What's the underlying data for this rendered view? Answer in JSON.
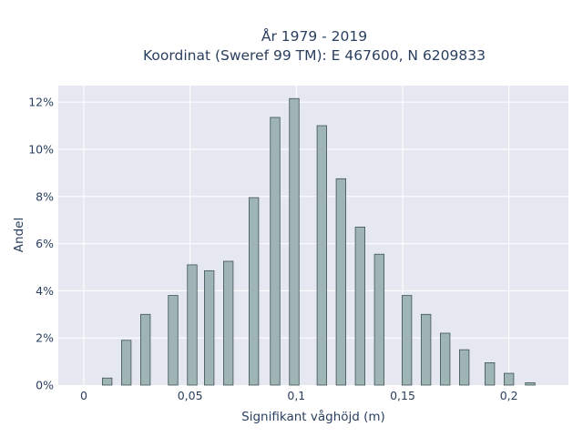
{
  "chart_data": {
    "type": "bar",
    "title_line1": "År 1979 - 2019",
    "title_line2": "Koordinat (Sweref 99 TM): E 467600, N 6209833",
    "xlabel": "Signifikant våghöjd (m)",
    "ylabel": "Andel",
    "xlim": [
      -0.012,
      0.228
    ],
    "ylim": [
      0,
      12.7
    ],
    "x_ticks": [
      {
        "value": 0,
        "label": "0"
      },
      {
        "value": 0.05,
        "label": "0,05"
      },
      {
        "value": 0.1,
        "label": "0,1"
      },
      {
        "value": 0.15,
        "label": "0,15"
      },
      {
        "value": 0.2,
        "label": "0,2"
      }
    ],
    "y_ticks": [
      {
        "value": 0,
        "label": "0%"
      },
      {
        "value": 2,
        "label": "2%"
      },
      {
        "value": 4,
        "label": "4%"
      },
      {
        "value": 6,
        "label": "6%"
      },
      {
        "value": 8,
        "label": "8%"
      },
      {
        "value": 10,
        "label": "10%"
      },
      {
        "value": 12,
        "label": "12%"
      }
    ],
    "bar_width": 0.0045,
    "x": [
      0.011,
      0.02,
      0.029,
      0.042,
      0.051,
      0.059,
      0.068,
      0.08,
      0.09,
      0.099,
      0.112,
      0.121,
      0.13,
      0.139,
      0.152,
      0.161,
      0.17,
      0.179,
      0.191,
      0.2,
      0.21
    ],
    "values": [
      0.3,
      1.9,
      3.0,
      3.8,
      5.1,
      4.85,
      5.25,
      7.95,
      11.35,
      12.15,
      11.0,
      8.75,
      6.7,
      5.55,
      3.8,
      3.0,
      2.2,
      1.5,
      0.95,
      0.5,
      0.1
    ],
    "colors": {
      "plot_bg": "#e5e8f1",
      "bar_fill": "#9fb5b5",
      "bar_stroke": "#3f5252",
      "grid": "#ffffff",
      "text": "#2a3f5f"
    }
  }
}
